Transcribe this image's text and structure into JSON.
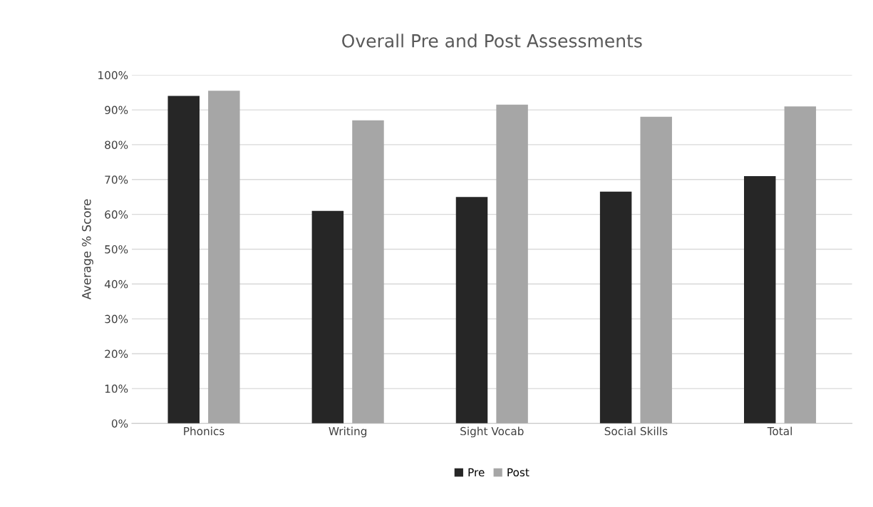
{
  "chart_data": {
    "type": "bar",
    "title": "Overall Pre and Post Assessments",
    "ylabel": "Average % Score",
    "categories": [
      "Phonics",
      "Writing",
      "Sight Vocab",
      "Social Skills",
      "Total"
    ],
    "series": [
      {
        "name": "Pre",
        "color": "#262626",
        "values": [
          94,
          61,
          65,
          66.5,
          71
        ]
      },
      {
        "name": "Post",
        "color": "#a6a6a6",
        "values": [
          95.5,
          87,
          91.5,
          88,
          91
        ]
      }
    ],
    "ylim": [
      0,
      100
    ],
    "yticks": [
      {
        "value": 0,
        "label": "0%"
      },
      {
        "value": 10,
        "label": "10%"
      },
      {
        "value": 20,
        "label": "20%"
      },
      {
        "value": 30,
        "label": "30%"
      },
      {
        "value": 40,
        "label": "40%"
      },
      {
        "value": 50,
        "label": "50%"
      },
      {
        "value": 60,
        "label": "60%"
      },
      {
        "value": 70,
        "label": "70%"
      },
      {
        "value": 80,
        "label": "80%"
      },
      {
        "value": 90,
        "label": "90%"
      },
      {
        "value": 100,
        "label": "100%"
      }
    ],
    "grid": "y",
    "legend": "bottom"
  }
}
